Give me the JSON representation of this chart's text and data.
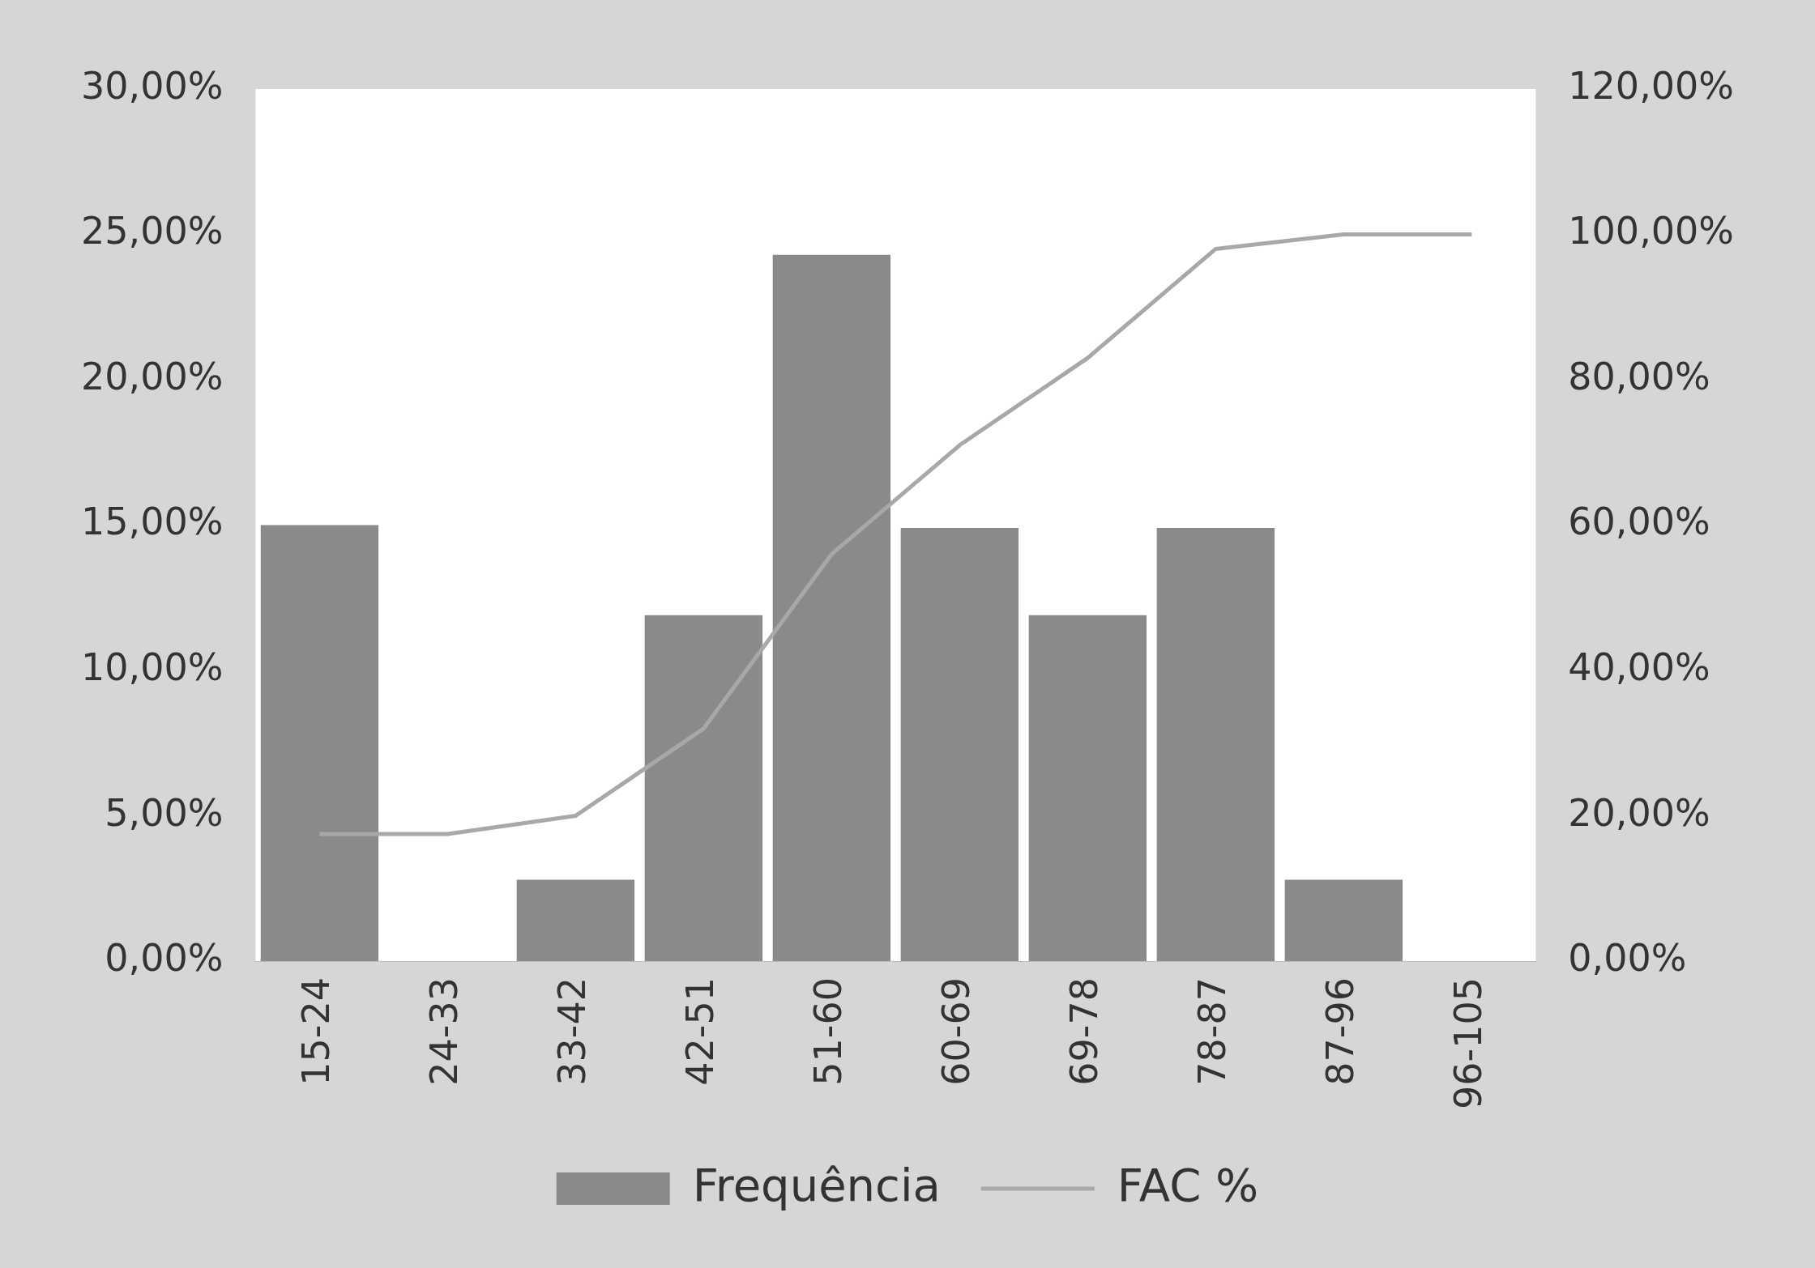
{
  "chart_data": {
    "type": "bar",
    "categories": [
      "15-24",
      "24-33",
      "33-42",
      "42-51",
      "51-60",
      "60-69",
      "69-78",
      "78-87",
      "87-96",
      "96-105"
    ],
    "series": [
      {
        "name": "Frequência",
        "color": "#8a8a8a",
        "values": [
          15,
          0,
          2.8,
          11.9,
          24.3,
          14.9,
          11.9,
          14.9,
          2.8,
          0
        ]
      },
      {
        "name": "FAC %",
        "type": "line",
        "axis": "y2",
        "color": "#a8a8a8",
        "values": [
          17.5,
          17.5,
          20,
          32,
          56,
          71,
          83,
          98,
          100,
          100
        ]
      }
    ],
    "ylim": [
      0,
      30
    ],
    "yticks": [
      {
        "value": 0,
        "label": "0,00%"
      },
      {
        "value": 5,
        "label": "5,00%"
      },
      {
        "value": 10,
        "label": "10,00%"
      },
      {
        "value": 15,
        "label": "15,00%"
      },
      {
        "value": 20,
        "label": "20,00%"
      },
      {
        "value": 25,
        "label": "25,00%"
      },
      {
        "value": 30,
        "label": "30,00%"
      }
    ],
    "y2lim": [
      0,
      120
    ],
    "y2ticks": [
      {
        "value": 0,
        "label": "0,00%"
      },
      {
        "value": 20,
        "label": "20,00%"
      },
      {
        "value": 40,
        "label": "40,00%"
      },
      {
        "value": 60,
        "label": "60,00%"
      },
      {
        "value": 80,
        "label": "80,00%"
      },
      {
        "value": 100,
        "label": "100,00%"
      },
      {
        "value": 120,
        "label": "120,00%"
      }
    ],
    "legend": "bottom",
    "grid": false,
    "marker": "none"
  }
}
